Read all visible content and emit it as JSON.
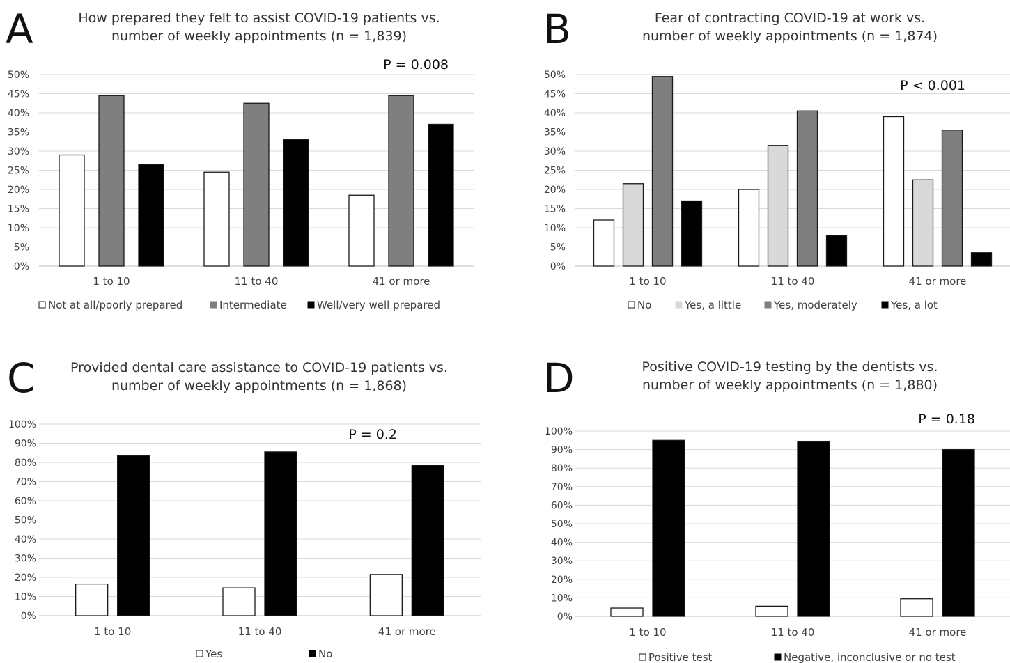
{
  "colors": {
    "white_fill": "#ffffff",
    "bar_stroke": "#1a1a1a",
    "light_gray": "#d9d9d9",
    "mid_gray": "#7f7f7f",
    "black": "#000000",
    "grid": "#d9d9d9",
    "axis": "#bfbfbf",
    "text": "#404040"
  },
  "chart_data": [
    {
      "panel_letter": "A",
      "type": "bar",
      "title_lines": [
        "How prepared they felt to assist COVID-19 patients vs.",
        "number of weekly appointments (n = 1,839)"
      ],
      "p_value": "P = 0.008",
      "categories": [
        "1 to 10",
        "11 to 40",
        "41 or more"
      ],
      "series": [
        {
          "name": "Not at all/poorly prepared",
          "fill": "#ffffff",
          "values": [
            29,
            24.5,
            18.5
          ]
        },
        {
          "name": "Intermediate",
          "fill": "#7f7f7f",
          "values": [
            44.5,
            42.5,
            44.5
          ]
        },
        {
          "name": "Well/very well prepared",
          "fill": "#000000",
          "values": [
            26.5,
            33,
            37
          ]
        }
      ],
      "ylim": [
        0,
        50
      ],
      "yticks": [
        0,
        5,
        10,
        15,
        20,
        25,
        30,
        35,
        40,
        45,
        50
      ],
      "ytick_labels": [
        "0%",
        "5%",
        "10%",
        "15%",
        "20%",
        "25%",
        "30%",
        "35%",
        "40%",
        "45%",
        "50%"
      ],
      "grid": true,
      "legend_position": "bottom"
    },
    {
      "panel_letter": "B",
      "type": "bar",
      "title_lines": [
        "Fear of contracting COVID-19 at work vs.",
        "number of weekly appointments (n = 1,874)"
      ],
      "p_value": "P < 0.001",
      "categories": [
        "1 to 10",
        "11 to 40",
        "41 or more"
      ],
      "series": [
        {
          "name": "No",
          "fill": "#ffffff",
          "values": [
            12,
            20,
            39
          ]
        },
        {
          "name": "Yes, a little",
          "fill": "#d9d9d9",
          "values": [
            21.5,
            31.5,
            22.5
          ]
        },
        {
          "name": "Yes, moderately",
          "fill": "#7f7f7f",
          "values": [
            49.5,
            40.5,
            35.5
          ]
        },
        {
          "name": "Yes, a lot",
          "fill": "#000000",
          "values": [
            17,
            8,
            3.5
          ]
        }
      ],
      "ylim": [
        0,
        50
      ],
      "yticks": [
        0,
        5,
        10,
        15,
        20,
        25,
        30,
        35,
        40,
        45,
        50
      ],
      "ytick_labels": [
        "0%",
        "5%",
        "10%",
        "15%",
        "20%",
        "25%",
        "30%",
        "35%",
        "40%",
        "45%",
        "50%"
      ],
      "grid": true,
      "legend_position": "bottom"
    },
    {
      "panel_letter": "C",
      "type": "bar",
      "title_lines": [
        "Provided dental care assistance to COVID-19 patients vs.",
        "number of weekly appointments (n = 1,868)"
      ],
      "p_value": "P = 0.2",
      "categories": [
        "1 to 10",
        "11 to 40",
        "41 or more"
      ],
      "series": [
        {
          "name": "Yes",
          "fill": "#ffffff",
          "values": [
            16.5,
            14.5,
            21.5
          ]
        },
        {
          "name": "No",
          "fill": "#000000",
          "values": [
            83.5,
            85.5,
            78.5
          ]
        }
      ],
      "ylim": [
        0,
        100
      ],
      "yticks": [
        0,
        10,
        20,
        30,
        40,
        50,
        60,
        70,
        80,
        90,
        100
      ],
      "ytick_labels": [
        "0%",
        "10%",
        "20%",
        "30%",
        "40%",
        "50%",
        "60%",
        "70%",
        "80%",
        "90%",
        "100%"
      ],
      "grid": true,
      "legend_position": "bottom"
    },
    {
      "panel_letter": "D",
      "type": "bar",
      "title_lines": [
        "Positive COVID-19 testing by the dentists vs.",
        "number of weekly appointments (n = 1,880)"
      ],
      "p_value": "P = 0.18",
      "categories": [
        "1 to 10",
        "11 to 40",
        "41 or more"
      ],
      "series": [
        {
          "name": "Positive test",
          "fill": "#ffffff",
          "values": [
            4.5,
            5.5,
            9.5
          ]
        },
        {
          "name": "Negative, inconclusive or no test",
          "fill": "#000000",
          "values": [
            95,
            94.5,
            90
          ]
        }
      ],
      "ylim": [
        0,
        100
      ],
      "yticks": [
        0,
        10,
        20,
        30,
        40,
        50,
        60,
        70,
        80,
        90,
        100
      ],
      "ytick_labels": [
        "0%",
        "10%",
        "20%",
        "30%",
        "40%",
        "50%",
        "60%",
        "70%",
        "80%",
        "90%",
        "100%"
      ],
      "grid": true,
      "legend_position": "bottom"
    }
  ]
}
